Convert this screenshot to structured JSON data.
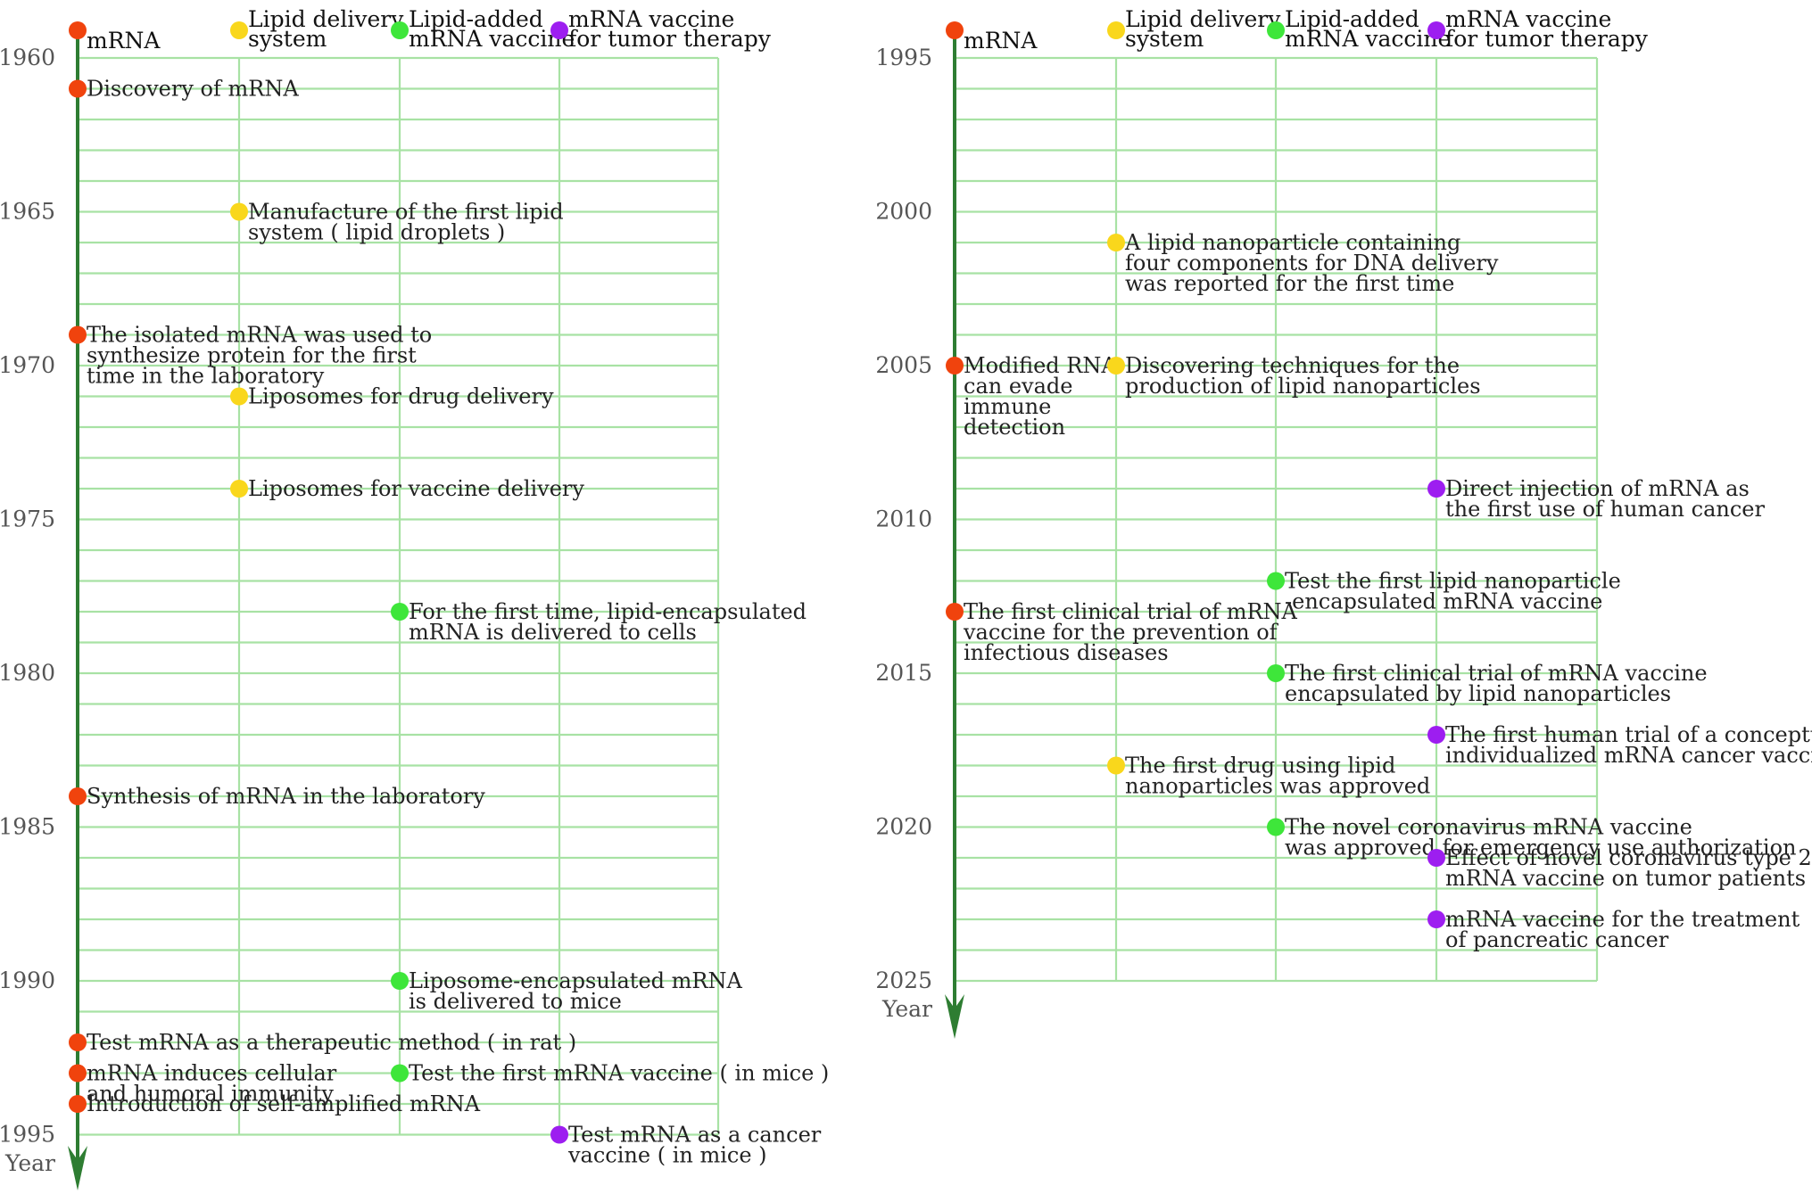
{
  "colors": {
    "grid": "#a8e2a4",
    "axis": "#2e7d32",
    "mrna": "#f0430d",
    "lipid": "#f9d71c",
    "lipid_added": "#3ee63a",
    "tumor": "#9d1ef0"
  },
  "categories": [
    {
      "id": "mrna",
      "label": [
        "mRNA"
      ],
      "color_key": "mrna"
    },
    {
      "id": "lipid",
      "label": [
        "Lipid delivery",
        "system"
      ],
      "color_key": "lipid"
    },
    {
      "id": "lipid_added",
      "label": [
        "Lipid-added",
        "mRNA vaccine"
      ],
      "color_key": "lipid_added"
    },
    {
      "id": "tumor",
      "label": [
        "mRNA vaccine",
        "for tumor therapy"
      ],
      "color_key": "tumor"
    }
  ],
  "axis_label": "Year",
  "panels": [
    {
      "year_start": 1960,
      "year_end": 1995,
      "tick_years": [
        1960,
        1965,
        1970,
        1975,
        1980,
        1985,
        1990,
        1995
      ],
      "events": [
        {
          "year": 1961,
          "col": 0,
          "lines": [
            "Discovery of mRNA"
          ]
        },
        {
          "year": 1965,
          "col": 1,
          "lines": [
            "Manufacture of the first lipid",
            "system ( lipid droplets )"
          ]
        },
        {
          "year": 1969,
          "col": 0,
          "lines": [
            "The isolated mRNA was used to",
            "synthesize protein for the first",
            "time in the laboratory"
          ]
        },
        {
          "year": 1971,
          "col": 1,
          "lines": [
            "Liposomes for drug delivery"
          ]
        },
        {
          "year": 1974,
          "col": 1,
          "lines": [
            "Liposomes for vaccine delivery"
          ]
        },
        {
          "year": 1978,
          "col": 2,
          "lines": [
            "For the first time, lipid-encapsulated",
            "mRNA is delivered to cells"
          ]
        },
        {
          "year": 1984,
          "col": 0,
          "lines": [
            "Synthesis of mRNA in the laboratory"
          ]
        },
        {
          "year": 1990,
          "col": 2,
          "lines": [
            "Liposome-encapsulated mRNA",
            "is delivered to mice"
          ]
        },
        {
          "year": 1992,
          "col": 0,
          "lines": [
            "Test mRNA as a therapeutic method ( in rat )"
          ]
        },
        {
          "year": 1993,
          "col": 0,
          "lines": [
            "mRNA induces cellular",
            "and humoral immunity"
          ]
        },
        {
          "year": 1993,
          "col": 2,
          "lines": [
            "Test the first mRNA vaccine ( in mice )"
          ]
        },
        {
          "year": 1994,
          "col": 0,
          "lines": [
            "Introduction of self-amplified mRNA"
          ]
        },
        {
          "year": 1995,
          "col": 3,
          "lines": [
            "Test mRNA as a cancer",
            "vaccine ( in mice )"
          ]
        }
      ]
    },
    {
      "year_start": 1995,
      "year_end": 2025,
      "tick_years": [
        1995,
        2000,
        2005,
        2010,
        2015,
        2020,
        2025
      ],
      "events": [
        {
          "year": 2001,
          "col": 1,
          "lines": [
            "A lipid nanoparticle containing",
            "four components for DNA delivery",
            "was reported for the first time"
          ]
        },
        {
          "year": 2005,
          "col": 0,
          "lines": [
            "Modified RNA",
            "can evade",
            "immune",
            "detection"
          ]
        },
        {
          "year": 2005,
          "col": 1,
          "lines": [
            "Discovering techniques for the",
            "production of lipid nanoparticles"
          ]
        },
        {
          "year": 2009,
          "col": 3,
          "lines": [
            "Direct injection of mRNA as",
            "the first use of human cancer"
          ]
        },
        {
          "year": 2012,
          "col": 2,
          "lines": [
            "Test the first lipid nanoparticle",
            "-encapsulated mRNA vaccine"
          ]
        },
        {
          "year": 2013,
          "col": 0,
          "lines": [
            "The first clinical trial of mRNA",
            "vaccine for the prevention of",
            "infectious diseases"
          ]
        },
        {
          "year": 2015,
          "col": 2,
          "lines": [
            "The first clinical trial of mRNA vaccine",
            "encapsulated by lipid nanoparticles"
          ]
        },
        {
          "year": 2017,
          "col": 3,
          "lines": [
            "The first human trial of a conceptual",
            "individualized mRNA cancer vaccine"
          ]
        },
        {
          "year": 2018,
          "col": 1,
          "lines": [
            "The first drug using lipid",
            "nanoparticles was approved"
          ]
        },
        {
          "year": 2020,
          "col": 2,
          "lines": [
            "The novel coronavirus mRNA vaccine",
            "was approved for emergency use authorization"
          ]
        },
        {
          "year": 2021,
          "col": 3,
          "lines": [
            "Effect of novel coronavirus type 2",
            "mRNA vaccine on tumor patients"
          ]
        },
        {
          "year": 2023,
          "col": 3,
          "lines": [
            "mRNA vaccine for the treatment",
            "of pancreatic cancer"
          ]
        }
      ]
    }
  ]
}
